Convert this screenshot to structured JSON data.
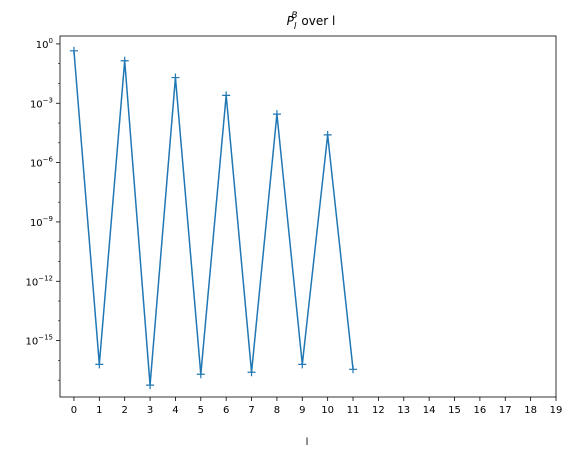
{
  "chart_data": {
    "type": "line",
    "title": "P_l^B over l",
    "title_main": "P",
    "title_sub": "l",
    "title_sup": "B",
    "title_rest": " over l",
    "xlabel": "l",
    "ylabel": "",
    "xlim": [
      -0.55,
      19.0
    ],
    "xticks": [
      0,
      1,
      2,
      3,
      4,
      5,
      6,
      7,
      8,
      9,
      10,
      11,
      12,
      13,
      14,
      15,
      16,
      17,
      18,
      19
    ],
    "ylim_log10": [
      -17.85,
      0.4
    ],
    "y_scale": "log",
    "yticks": [
      {
        "exp": 0,
        "base": "10",
        "sup": "0"
      },
      {
        "exp": -3,
        "base": "10",
        "sup": "−3"
      },
      {
        "exp": -6,
        "base": "10",
        "sup": "−6"
      },
      {
        "exp": -9,
        "base": "10",
        "sup": "−9"
      },
      {
        "exp": -12,
        "base": "10",
        "sup": "−12"
      },
      {
        "exp": -15,
        "base": "10",
        "sup": "−15"
      }
    ],
    "marker": "+",
    "color": "#1f77b4",
    "grid": false,
    "series": [
      {
        "x": [
          0,
          1,
          2,
          3,
          4,
          5,
          6,
          7,
          8,
          9,
          10,
          11
        ],
        "y_log10": [
          -0.35,
          -16.2,
          -0.85,
          -17.25,
          -1.7,
          -16.7,
          -2.6,
          -16.6,
          -3.55,
          -16.2,
          -4.6,
          -16.45
        ]
      }
    ]
  }
}
